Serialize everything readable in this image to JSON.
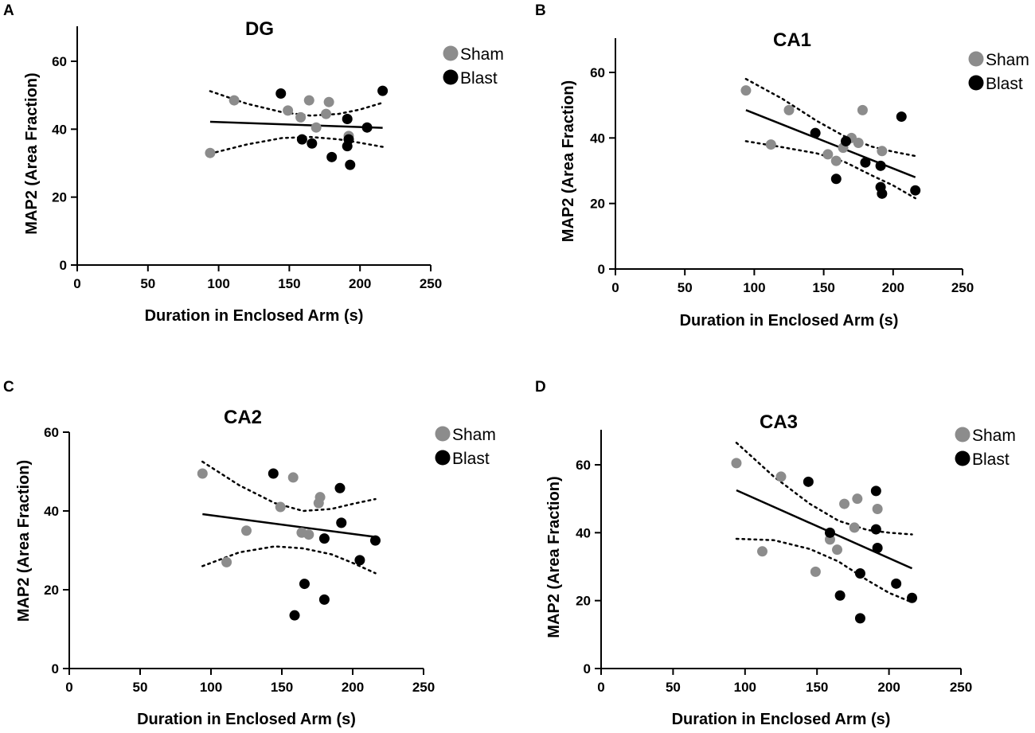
{
  "figure": {
    "background": "#ffffff"
  },
  "colors": {
    "sham": "#8c8c8c",
    "blast": "#000000"
  },
  "chart_data": [
    {
      "panel": "A",
      "type": "scatter",
      "title": "DG",
      "xlabel": "Duration in Enclosed Arm (s)",
      "ylabel": "MAP2 (Area Fraction)",
      "xlim": [
        0,
        250
      ],
      "ylim": [
        0,
        70
      ],
      "xticks": [
        0,
        50,
        100,
        150,
        200,
        250
      ],
      "yticks": [
        0,
        20,
        40,
        60
      ],
      "legend": {
        "placement": "top-right",
        "items": [
          "Sham",
          "Blast"
        ]
      },
      "series": [
        {
          "name": "Sham",
          "color": "#8c8c8c",
          "points": [
            [
              94,
              33
            ],
            [
              111,
              48.5
            ],
            [
              149,
              45.5
            ],
            [
              158,
              43.5
            ],
            [
              164,
              48.5
            ],
            [
              169,
              40.5
            ],
            [
              176,
              44.5
            ],
            [
              178,
              48
            ],
            [
              192,
              38
            ]
          ]
        },
        {
          "name": "Blast",
          "color": "#000000",
          "points": [
            [
              144,
              50.5
            ],
            [
              159,
              37
            ],
            [
              166,
              35.8
            ],
            [
              180,
              31.8
            ],
            [
              191,
              43
            ],
            [
              191,
              35
            ],
            [
              192,
              37
            ],
            [
              193,
              29.5
            ],
            [
              205,
              40.5
            ],
            [
              216,
              51.3
            ]
          ]
        }
      ],
      "fit": {
        "x": [
          94,
          216
        ],
        "y": [
          42.2,
          40.4
        ]
      },
      "ci_upper": {
        "x": [
          94,
          120,
          145,
          165,
          185,
          200,
          216
        ],
        "y": [
          51.2,
          47.5,
          45,
          44,
          44.5,
          45.8,
          47.8
        ]
      },
      "ci_lower": {
        "x": [
          94,
          120,
          145,
          165,
          185,
          200,
          216
        ],
        "y": [
          32.8,
          35.5,
          37.4,
          37.7,
          37,
          36,
          34.8
        ]
      }
    },
    {
      "panel": "B",
      "type": "scatter",
      "title": "CA1",
      "xlabel": "Duration in Enclosed Arm (s)",
      "ylabel": "MAP2 (Area Fraction)",
      "xlim": [
        0,
        250
      ],
      "ylim": [
        0,
        70
      ],
      "xticks": [
        0,
        50,
        100,
        150,
        200,
        250
      ],
      "yticks": [
        0,
        20,
        40,
        60
      ],
      "legend": {
        "placement": "top-right",
        "items": [
          "Sham",
          "Blast"
        ]
      },
      "series": [
        {
          "name": "Sham",
          "color": "#8c8c8c",
          "points": [
            [
              94,
              54.5
            ],
            [
              112,
              38
            ],
            [
              125,
              48.5
            ],
            [
              153,
              35
            ],
            [
              159,
              33
            ],
            [
              164,
              37
            ],
            [
              170,
              40
            ],
            [
              175,
              38.5
            ],
            [
              178,
              48.5
            ],
            [
              192,
              36
            ]
          ]
        },
        {
          "name": "Blast",
          "color": "#000000",
          "points": [
            [
              144,
              41.5
            ],
            [
              159,
              27.5
            ],
            [
              166,
              39
            ],
            [
              180,
              32.5
            ],
            [
              191,
              31.5
            ],
            [
              191,
              25
            ],
            [
              192,
              23
            ],
            [
              206,
              46.5
            ],
            [
              216,
              24
            ]
          ]
        }
      ],
      "fit": {
        "x": [
          94,
          216
        ],
        "y": [
          48.5,
          28
        ]
      },
      "ci_upper": {
        "x": [
          94,
          120,
          145,
          165,
          185,
          200,
          216
        ],
        "y": [
          58,
          52,
          45.2,
          40.5,
          37.3,
          35.8,
          34.5
        ]
      },
      "ci_lower": {
        "x": [
          94,
          120,
          145,
          165,
          185,
          200,
          216
        ],
        "y": [
          39,
          37.2,
          35.3,
          32.7,
          28.5,
          25.5,
          21.6
        ]
      }
    },
    {
      "panel": "C",
      "type": "scatter",
      "title": "CA2",
      "xlabel": "Duration in Enclosed Arm (s)",
      "ylabel": "MAP2 (Area Fraction)",
      "xlim": [
        0,
        250
      ],
      "ylim": [
        0,
        60
      ],
      "xticks": [
        0,
        50,
        100,
        150,
        200,
        250
      ],
      "yticks": [
        0,
        20,
        40,
        60
      ],
      "legend": {
        "placement": "top-right",
        "items": [
          "Sham",
          "Blast"
        ]
      },
      "series": [
        {
          "name": "Sham",
          "color": "#8c8c8c",
          "points": [
            [
              94,
              49.5
            ],
            [
              111,
              27
            ],
            [
              125,
              35
            ],
            [
              149,
              41
            ],
            [
              158,
              48.5
            ],
            [
              164,
              34.5
            ],
            [
              169,
              34
            ],
            [
              176,
              42
            ],
            [
              177,
              43.5
            ],
            [
              192,
              37
            ]
          ]
        },
        {
          "name": "Blast",
          "color": "#000000",
          "points": [
            [
              144,
              49.5
            ],
            [
              159,
              13.5
            ],
            [
              166,
              21.5
            ],
            [
              180,
              17.5
            ],
            [
              180,
              33
            ],
            [
              191,
              45.8
            ],
            [
              192,
              37
            ],
            [
              205,
              27.5
            ],
            [
              216,
              32.5
            ]
          ]
        }
      ],
      "fit": {
        "x": [
          94,
          216
        ],
        "y": [
          39.2,
          33.4
        ]
      },
      "ci_upper": {
        "x": [
          94,
          120,
          145,
          165,
          185,
          200,
          216
        ],
        "y": [
          52.5,
          46.5,
          42,
          40,
          40.5,
          41.8,
          43
        ]
      },
      "ci_lower": {
        "x": [
          94,
          120,
          145,
          165,
          185,
          200,
          216
        ],
        "y": [
          26,
          29.5,
          31,
          30.5,
          29,
          26.8,
          24.2
        ]
      }
    },
    {
      "panel": "D",
      "type": "scatter",
      "title": "CA3",
      "xlabel": "Duration in Enclosed Arm (s)",
      "ylabel": "MAP2 (Area Fraction)",
      "xlim": [
        0,
        250
      ],
      "ylim": [
        0,
        70
      ],
      "xticks": [
        0,
        50,
        100,
        150,
        200,
        250
      ],
      "yticks": [
        0,
        20,
        40,
        60
      ],
      "legend": {
        "placement": "top-right",
        "items": [
          "Sham",
          "Blast"
        ]
      },
      "series": [
        {
          "name": "Sham",
          "color": "#8c8c8c",
          "points": [
            [
              94,
              60.5
            ],
            [
              112,
              34.5
            ],
            [
              125,
              56.5
            ],
            [
              149,
              28.5
            ],
            [
              159,
              38
            ],
            [
              164,
              35
            ],
            [
              169,
              48.5
            ],
            [
              176,
              41.5
            ],
            [
              178,
              50
            ],
            [
              192,
              47
            ]
          ]
        },
        {
          "name": "Blast",
          "color": "#000000",
          "points": [
            [
              144,
              55
            ],
            [
              159,
              40
            ],
            [
              166,
              21.5
            ],
            [
              180,
              28
            ],
            [
              180,
              14.8
            ],
            [
              191,
              52.3
            ],
            [
              191,
              41
            ],
            [
              192,
              35.5
            ],
            [
              205,
              25
            ],
            [
              216,
              20.8
            ]
          ]
        }
      ],
      "fit": {
        "x": [
          94,
          216
        ],
        "y": [
          52.5,
          29.5
        ]
      },
      "ci_upper": {
        "x": [
          94,
          120,
          145,
          165,
          185,
          200,
          216
        ],
        "y": [
          66.5,
          56.5,
          48.5,
          43.5,
          40.8,
          40,
          39.5
        ]
      },
      "ci_lower": {
        "x": [
          94,
          120,
          145,
          165,
          185,
          200,
          216
        ],
        "y": [
          38.2,
          37.8,
          35.2,
          31.5,
          26,
          22.3,
          19.5
        ]
      }
    }
  ]
}
